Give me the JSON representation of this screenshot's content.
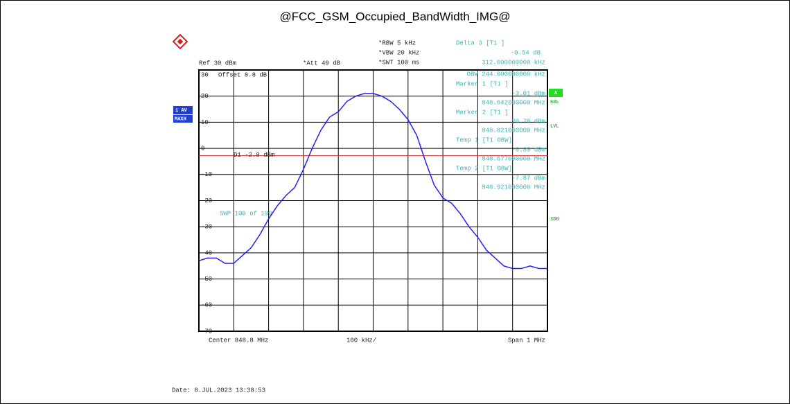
{
  "title": "@FCC_GSM_Occupied_BandWidth_IMG@",
  "settings": {
    "ref": "Ref  30 dBm",
    "att": "*Att  40 dB",
    "rbw": "*RBW  5 kHz",
    "vbw": "*VBW  20 kHz",
    "swt": "*SWT  100 ms",
    "offset": "Offset   8.8 dB",
    "sweep": "SWP   100 of  100"
  },
  "readout": {
    "delta_label": "Delta 3 [T1 ]",
    "delta_value": "-0.54 dB",
    "delta_freq": "312.000000000 kHz",
    "obw": "OBW 244.000000000 kHz",
    "marker1_label": "Marker 1 [T1 ]",
    "marker1_value": "-3.01 dBm",
    "marker1_freq": "848.642000000 MHz",
    "marker2_label": "Marker 2 [T1 ]",
    "marker2_value": "20.70 dBm",
    "marker2_freq": "848.821000000 MHz",
    "temp1_label": "Temp 1 [T1 OBW]",
    "temp1_value": "-6.89 dBm",
    "temp1_freq": "848.677000000 MHz",
    "temp2_label": "Temp 2 [T1 OBW]",
    "temp2_value": "-7.87 dBm",
    "temp2_freq": "848.921000000 MHz"
  },
  "badges": {
    "trace": "1 AV",
    "mode": "MAXH",
    "a": "A",
    "sgl": "SGL",
    "lvl": "LVL",
    "db": "3DB"
  },
  "footer": {
    "center": "Center  848.8 MHz",
    "div": "100 kHz/",
    "span": "Span  1 MHz",
    "date": "Date: 8.JUL.2023  13:38:53"
  },
  "chart_data": {
    "type": "line",
    "x": [
      848.3,
      848.325,
      848.35,
      848.375,
      848.4,
      848.425,
      848.45,
      848.475,
      848.5,
      848.525,
      848.55,
      848.575,
      848.6,
      848.625,
      848.65,
      848.675,
      848.7,
      848.725,
      848.75,
      848.775,
      848.8,
      848.825,
      848.85,
      848.875,
      848.9,
      848.925,
      848.95,
      848.975,
      849.0,
      849.025,
      849.05,
      849.075,
      849.1,
      849.125,
      849.15,
      849.175,
      849.2,
      849.225,
      849.25,
      849.275,
      849.3
    ],
    "series": [
      {
        "name": "1 AV",
        "color": "#1f1fff",
        "values": [
          -43,
          -42,
          -42,
          -44,
          -44,
          -41,
          -38,
          -33,
          -27,
          -22,
          -18,
          -15,
          -8,
          0,
          7,
          12,
          14,
          18,
          20,
          21,
          21,
          20,
          18,
          15,
          11,
          5,
          -5,
          -14,
          -19,
          -21,
          -25,
          -30,
          -34,
          -39,
          -42,
          -45,
          -46,
          -46,
          -45,
          -46,
          -46
        ]
      }
    ],
    "xlim": [
      848.3,
      849.3
    ],
    "xticks": [
      848.3,
      848.4,
      848.5,
      848.6,
      848.7,
      848.8,
      848.9,
      849.0,
      849.1,
      849.2,
      849.3
    ],
    "ylim": [
      -70,
      30
    ],
    "yticks": [
      30,
      20,
      10,
      0,
      -10,
      -20,
      -30,
      -40,
      -50,
      -60,
      -70
    ],
    "display_line": {
      "value": -2.8,
      "label": "D1  -2.8 dBm",
      "color": "#e03030"
    },
    "grid": true
  }
}
